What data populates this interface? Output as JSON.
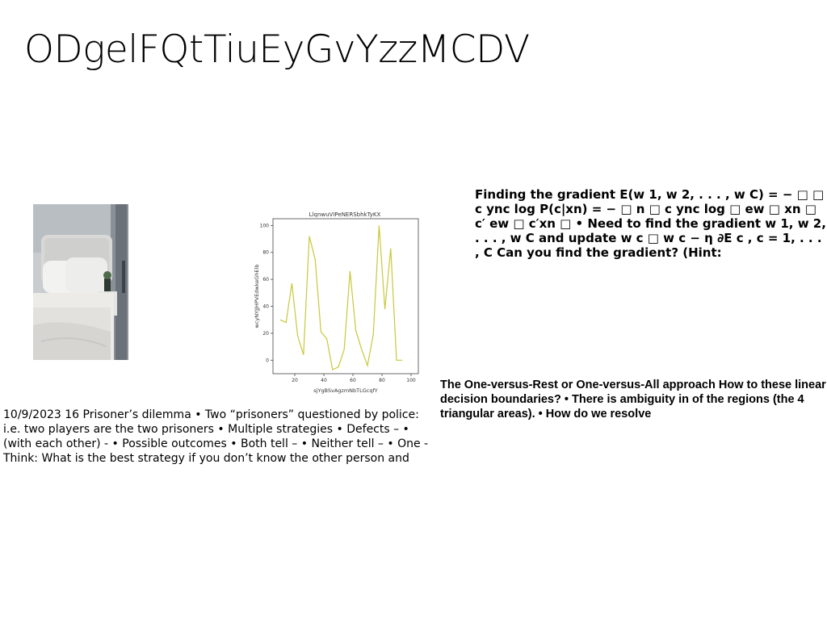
{
  "slide": {
    "title": "ODgelFQtTiuEyGvYzzMCDV",
    "gradient_text": "Finding the gradient E(w 1, w 2, . . . , w C) = − □ □ c ync log P(c|xn) = − □ n □ c ync log □ ew □ xn □ c′ ew □ c′xn □ • Need to find the gradient w 1, w 2, . . . , w C and update w c □ w c − η ∂E c , c = 1, . . . , C Can you find the gradient? (Hint:",
    "ovr_text": "The One-versus-Rest or One-versus-All approach How to these linear decision boundaries? • There is ambiguity in of the regions (the 4 triangular areas). • How do we resolve",
    "dilemma_text": "10/9/2023 16 Prisoner’s dilemma • Two “prisoners” questioned by police: i.e. two players are the two prisoners • Multiple strategies • Defects – • (with each other) - • Possible outcomes • Both tell – • Neither tell – • One - Think: What is the best strategy if you don’t know the other person and"
  },
  "colors": {
    "line": "#c8c83c",
    "background": "#ffffff"
  },
  "chart_data": {
    "type": "line",
    "title": "LlqnwuVIPeNERSbhkTyKX",
    "xlabel": "sjYgBSvAgzmNbTLGcqfY",
    "ylabel": "wcyNYJJHPVEdwkeGhElb",
    "xlim": [
      5,
      105
    ],
    "ylim": [
      -10,
      105
    ],
    "x_ticks": [
      20,
      40,
      60,
      80,
      100
    ],
    "y_ticks": [
      0,
      20,
      40,
      60,
      80,
      100
    ],
    "grid": false,
    "series": [
      {
        "x": [
          10,
          14,
          18,
          22,
          26,
          30,
          34,
          38,
          42,
          46,
          50,
          54,
          58,
          62,
          66,
          70,
          74,
          78,
          82,
          86,
          90,
          94,
          98
        ],
        "values": [
          30,
          28,
          57,
          18,
          4,
          92,
          75,
          21,
          16,
          -7,
          -5,
          8,
          66,
          22,
          8,
          -4,
          19,
          100,
          38,
          83,
          0,
          0,
          0
        ]
      }
    ]
  }
}
